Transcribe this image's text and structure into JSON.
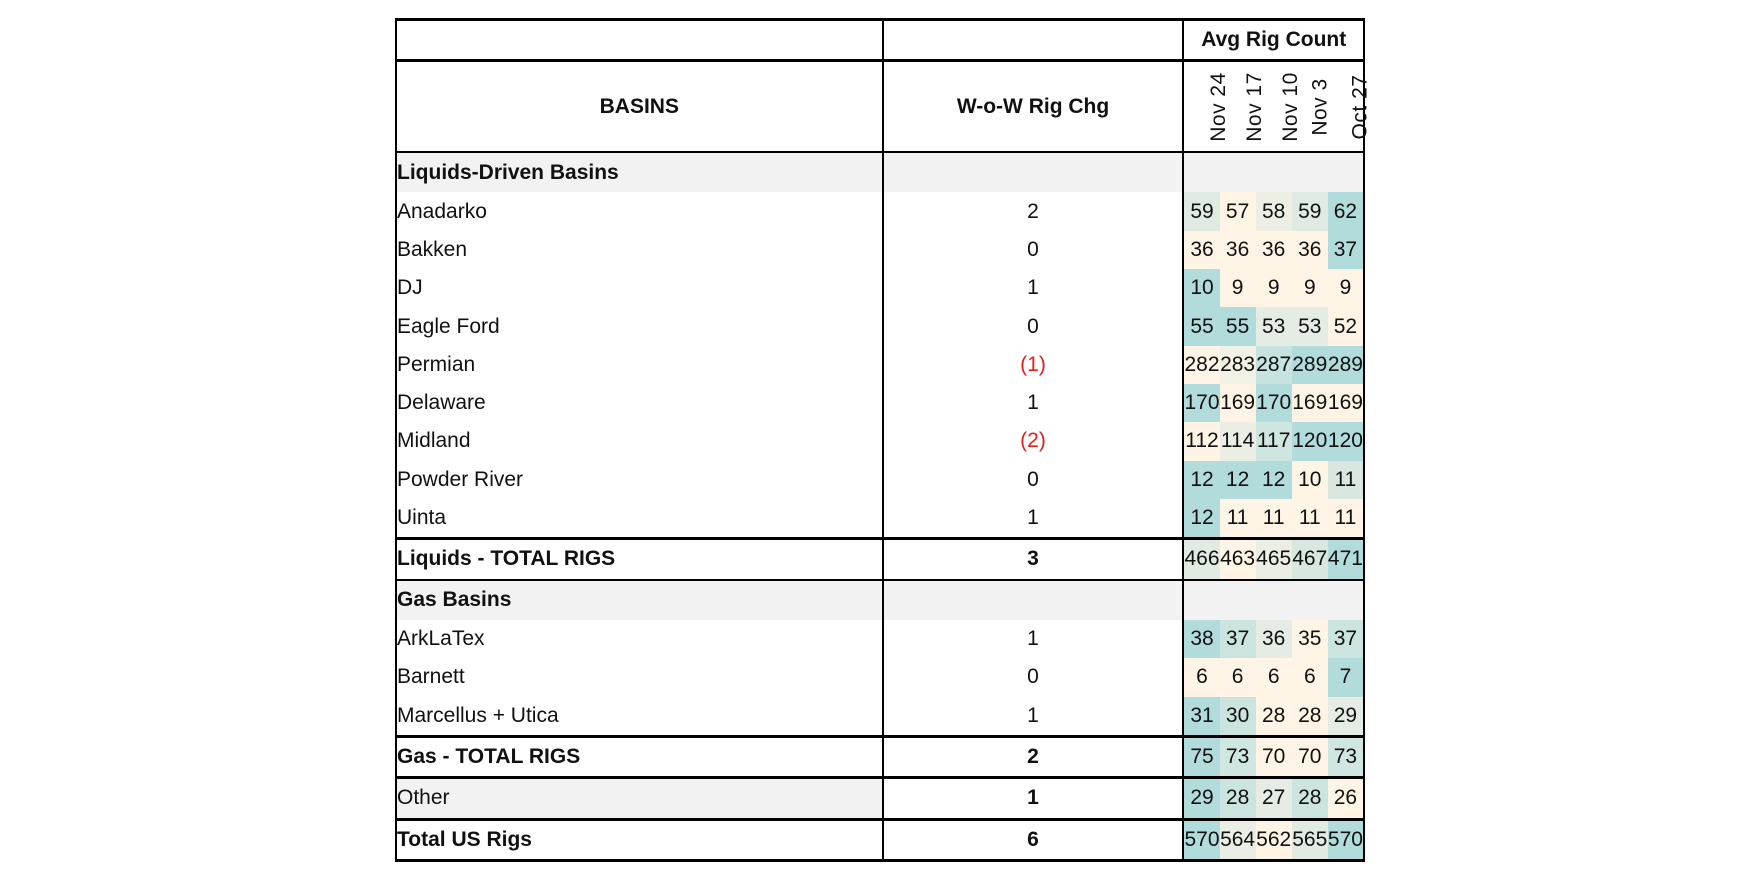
{
  "chart_data": {
    "type": "table",
    "title": "Avg Rig Count",
    "row_header": "BASINS",
    "change_header": "W-o-W Rig Chg",
    "columns": [
      "Nov 24",
      "Nov 17",
      "Nov 10",
      "Nov 3",
      "Oct 27"
    ],
    "sections": [
      {
        "name": "Liquids-Driven Basins",
        "rows": [
          {
            "label": "Anadarko",
            "chg": "2",
            "negative": false,
            "indent": false,
            "values": [
              59,
              57,
              58,
              59,
              62
            ]
          },
          {
            "label": "Bakken",
            "chg": "0",
            "negative": false,
            "indent": false,
            "values": [
              36,
              36,
              36,
              36,
              37
            ]
          },
          {
            "label": "DJ",
            "chg": "1",
            "negative": false,
            "indent": false,
            "values": [
              10,
              9,
              9,
              9,
              9
            ]
          },
          {
            "label": "Eagle Ford",
            "chg": "0",
            "negative": false,
            "indent": false,
            "values": [
              55,
              55,
              53,
              53,
              52
            ]
          },
          {
            "label": "Permian",
            "chg": "(1)",
            "negative": true,
            "indent": false,
            "values": [
              282,
              283,
              287,
              289,
              289
            ]
          },
          {
            "label": "Delaware",
            "chg": "1",
            "negative": false,
            "indent": true,
            "values": [
              170,
              169,
              170,
              169,
              169
            ]
          },
          {
            "label": "Midland",
            "chg": "(2)",
            "negative": true,
            "indent": true,
            "values": [
              112,
              114,
              117,
              120,
              120
            ]
          },
          {
            "label": "Powder River",
            "chg": "0",
            "negative": false,
            "indent": false,
            "values": [
              12,
              12,
              12,
              10,
              11
            ]
          },
          {
            "label": "Uinta",
            "chg": "1",
            "negative": false,
            "indent": false,
            "values": [
              12,
              11,
              11,
              11,
              11
            ]
          }
        ],
        "total": {
          "label": "Liquids - TOTAL RIGS",
          "chg": "3",
          "values": [
            466,
            463,
            465,
            467,
            471
          ]
        }
      },
      {
        "name": "Gas Basins",
        "rows": [
          {
            "label": "ArkLaTex",
            "chg": "1",
            "negative": false,
            "indent": true,
            "values": [
              38,
              37,
              36,
              35,
              37
            ]
          },
          {
            "label": "Barnett",
            "chg": "0",
            "negative": false,
            "indent": true,
            "values": [
              6,
              6,
              6,
              6,
              7
            ]
          },
          {
            "label": "Marcellus + Utica",
            "chg": "1",
            "negative": false,
            "indent": true,
            "values": [
              31,
              30,
              28,
              28,
              29
            ]
          }
        ],
        "total": {
          "label": "Gas - TOTAL RIGS",
          "chg": "2",
          "values": [
            75,
            73,
            70,
            70,
            73
          ]
        }
      }
    ],
    "other": {
      "label": "Other",
      "chg": "1",
      "values": [
        29,
        28,
        27,
        28,
        26
      ]
    },
    "grand_total": {
      "label": "Total US Rigs",
      "chg": "6",
      "values": [
        570,
        564,
        562,
        565,
        570
      ]
    },
    "heatmap_colors": {
      "low": "#fdf4e6",
      "high": "#b2dcdc"
    },
    "negative_color": "#e0201c"
  }
}
